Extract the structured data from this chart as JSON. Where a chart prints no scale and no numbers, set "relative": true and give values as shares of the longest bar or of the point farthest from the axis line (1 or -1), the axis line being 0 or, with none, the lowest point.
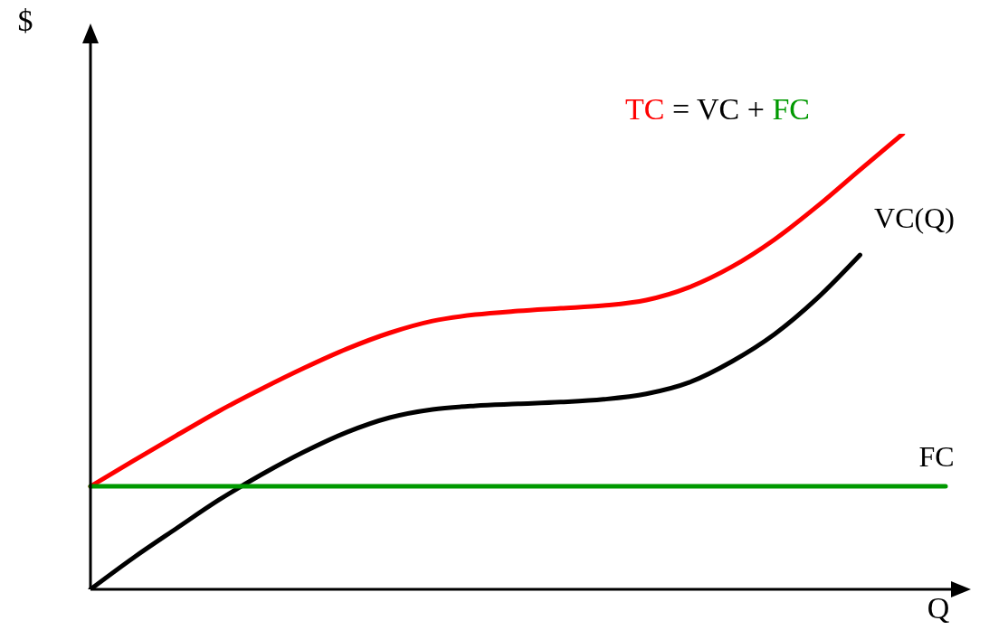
{
  "chart_data": {
    "type": "line",
    "relative": true,
    "xlabel": "Q",
    "ylabel": "$",
    "tick_labels": false,
    "marker": "none",
    "annotations": [
      "TC = VC + FC"
    ],
    "categories": [
      null,
      null,
      null,
      null,
      null,
      null,
      null,
      null,
      null,
      null,
      null,
      null,
      null,
      null,
      null,
      null,
      null,
      null,
      null,
      null,
      null
    ],
    "series": [
      {
        "color": "#ff0000",
        "values": [
          0.226,
          0.282,
          0.337,
          0.391,
          0.44,
          0.486,
          0.528,
          0.563,
          0.589,
          0.603,
          0.611,
          0.617,
          0.623,
          0.635,
          0.663,
          0.708,
          0.768,
          0.841,
          0.921,
          1,
          null
        ]
      },
      {
        "name": "VC(Q)",
        "color": "#000000",
        "values": [
          0,
          0.069,
          0.133,
          0.196,
          0.252,
          0.302,
          0.345,
          0.377,
          0.395,
          0.403,
          0.407,
          0.411,
          0.417,
          0.429,
          0.454,
          0.5,
          0.56,
          0.639,
          0.734,
          null,
          null
        ]
      },
      {
        "name": "FC",
        "color": "#009900",
        "values": [
          0.226,
          0.226,
          0.226,
          0.226,
          0.226,
          0.226,
          0.226,
          0.226,
          0.226,
          0.226,
          0.226,
          0.226,
          0.226,
          0.226,
          0.226,
          0.226,
          0.226,
          0.226,
          0.226,
          0.226,
          0.226
        ]
      }
    ]
  }
}
